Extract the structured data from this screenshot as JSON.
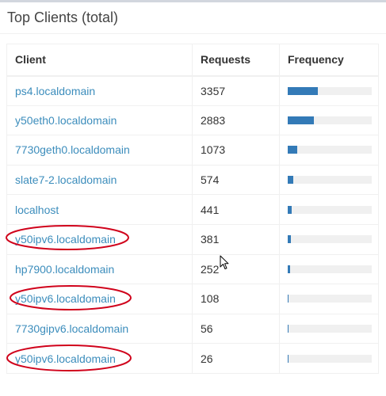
{
  "panel": {
    "title": "Top Clients (total)"
  },
  "table": {
    "columns": {
      "client": "Client",
      "requests": "Requests",
      "frequency": "Frequency"
    },
    "rows": [
      {
        "client": "ps4.localdomain",
        "requests": "3357",
        "frequency": 0.36,
        "highlighted": false
      },
      {
        "client": "y50eth0.localdomain",
        "requests": "2883",
        "frequency": 0.31,
        "highlighted": false
      },
      {
        "client": "7730geth0.localdomain",
        "requests": "1073",
        "frequency": 0.115,
        "highlighted": false
      },
      {
        "client": "slate7-2.localdomain",
        "requests": "574",
        "frequency": 0.062,
        "highlighted": false
      },
      {
        "client": "localhost",
        "requests": "441",
        "frequency": 0.047,
        "highlighted": false
      },
      {
        "client": "y50ipv6.localdomain",
        "requests": "381",
        "frequency": 0.041,
        "highlighted": true
      },
      {
        "client": "hp7900.localdomain",
        "requests": "252",
        "frequency": 0.027,
        "highlighted": false
      },
      {
        "client": "y50ipv6.localdomain",
        "requests": "108",
        "frequency": 0.012,
        "highlighted": true
      },
      {
        "client": "7730gipv6.localdomain",
        "requests": "56",
        "frequency": 0.006,
        "highlighted": false
      },
      {
        "client": "y50ipv6.localdomain",
        "requests": "26",
        "frequency": 0.003,
        "highlighted": true
      }
    ]
  },
  "colors": {
    "link": "#3c8dbc",
    "bar_fill": "#337ab7",
    "bar_track": "#f0f0f0",
    "annotation": "#d0021b"
  }
}
